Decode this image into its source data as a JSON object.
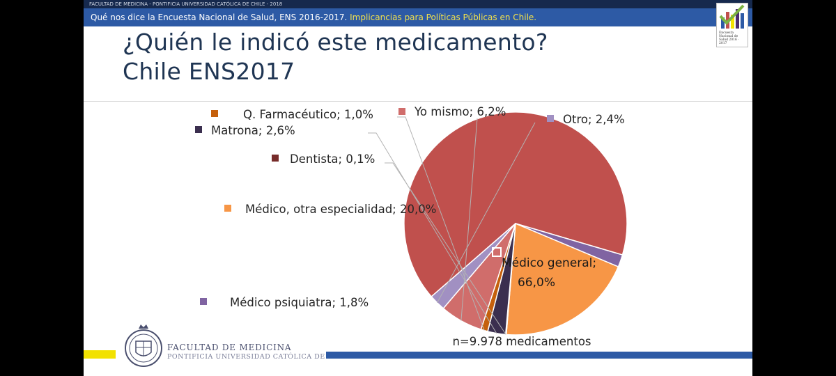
{
  "header": {
    "top_text": "FACULTAD DE MEDICINA - PONTIFICIA UNIVERSIDAD CATÓLICA DE CHILE - 2018",
    "sub_text_main": "Qué nos dice la Encuesta Nacional de Salud, ENS 2016-2017.",
    "sub_text_highlight": "Implicancias para Políticas Públicas en Chile.",
    "logo_text": "Encuesta Nacional de Salud 2016 · 2017"
  },
  "title": {
    "line1": "¿Quién le indicó este medicamento?",
    "line2": "Chile ENS2017"
  },
  "chart_data": {
    "type": "pie",
    "slices": [
      {
        "name": "Médico general",
        "value": 66.0,
        "label": "Médico general;",
        "value_label": "66,0%",
        "color": "#c0504d"
      },
      {
        "name": "Médico psiquiatra",
        "value": 1.8,
        "label": "Médico psiquiatra; 1,8%",
        "color": "#8064a2"
      },
      {
        "name": "Médico, otra especialidad",
        "value": 20.0,
        "label": "Médico, otra especialidad; 20,0%",
        "color": "#f79646"
      },
      {
        "name": "Dentista",
        "value": 0.1,
        "label": "Dentista; 0,1%",
        "color": "#772c2a"
      },
      {
        "name": "Matrona",
        "value": 2.6,
        "label": "Matrona; 2,6%",
        "color": "#3b2f4f"
      },
      {
        "name": "Q. Farmacéutico",
        "value": 1.0,
        "label": "Q. Farmacéutico; 1,0%",
        "color": "#c5600c"
      },
      {
        "name": "Yo mismo",
        "value": 6.2,
        "label": "Yo mismo; 6,2%",
        "color": "#d06d6b"
      },
      {
        "name": "Otro",
        "value": 2.4,
        "label": "Otro; 2,4%",
        "color": "#a190c2"
      }
    ],
    "annotation": "n=9.978 medicamentos"
  },
  "footer": {
    "faculty": "FACULTAD DE MEDICINA",
    "university": "PONTIFICIA UNIVERSIDAD CATÓLICA DE CHILE"
  },
  "colors": {
    "top_bar": "#16294d",
    "sub_bar": "#2d5aa5",
    "highlight": "#f2e14c",
    "title": "#1f3553",
    "yellow_bar": "#f2e100"
  }
}
